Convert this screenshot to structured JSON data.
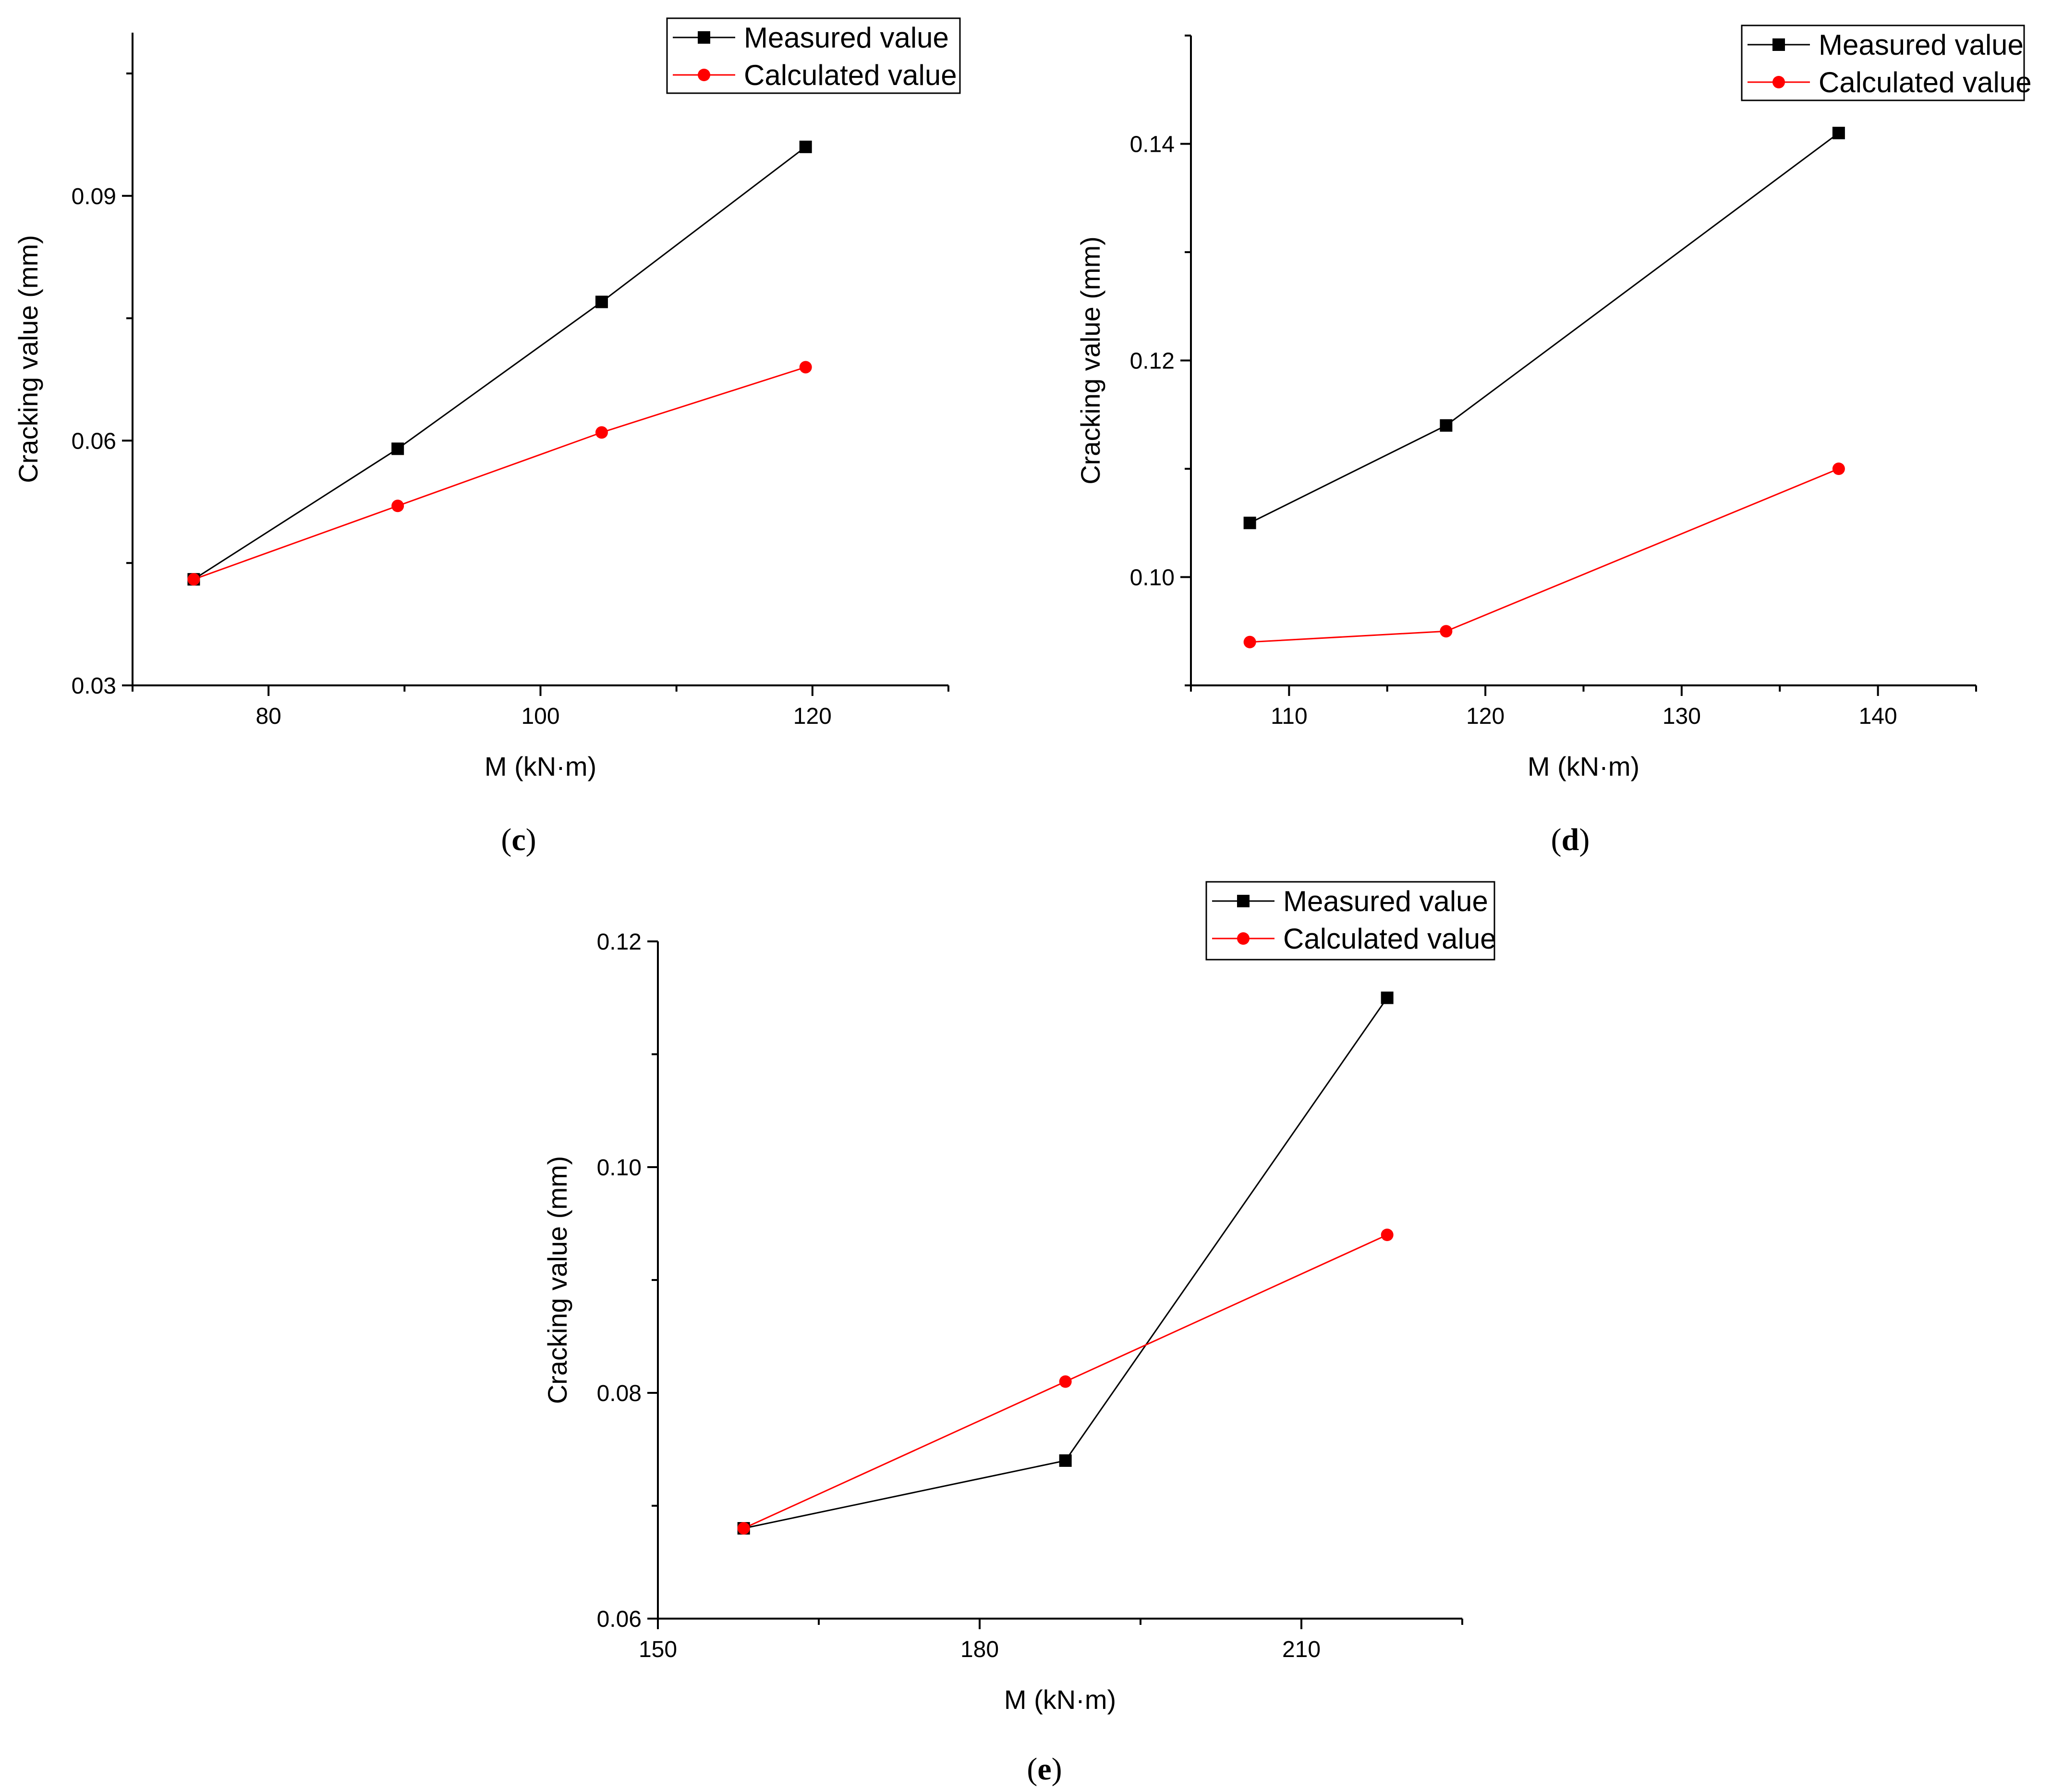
{
  "figure": {
    "captions": [
      "(c)",
      "(d)",
      "(e)"
    ]
  },
  "colors": {
    "measured": "#000000",
    "calculated": "#ff0000",
    "axis": "#000000",
    "background": "#ffffff"
  },
  "chart_data": [
    {
      "id": "c",
      "caption": "(c)",
      "type": "line",
      "xlabel": "M (kN·m)",
      "ylabel": "Cracking value (mm)",
      "xlim": [
        70,
        130
      ],
      "ylim": [
        0.03,
        0.11
      ],
      "xticks": [
        80,
        100,
        120
      ],
      "xtick_labels": [
        "80",
        "100",
        "120"
      ],
      "yticks": [
        0.03,
        0.06,
        0.09
      ],
      "ytick_labels": [
        "0.03",
        "0.06",
        "0.09"
      ],
      "grid": false,
      "legend_position": "top-right",
      "series": [
        {
          "name": "Measured value",
          "marker": "square",
          "color": "#000000",
          "x": [
            74.5,
            89.5,
            104.5,
            119.5
          ],
          "y": [
            0.043,
            0.059,
            0.077,
            0.096
          ]
        },
        {
          "name": "Calculated value",
          "marker": "circle",
          "color": "#ff0000",
          "x": [
            74.5,
            89.5,
            104.5,
            119.5
          ],
          "y": [
            0.043,
            0.052,
            0.061,
            0.069
          ]
        }
      ]
    },
    {
      "id": "d",
      "caption": "(d)",
      "type": "line",
      "xlabel": "M (kN·m)",
      "ylabel": "Cracking value (mm)",
      "xlim": [
        105,
        145
      ],
      "ylim": [
        0.09,
        0.15
      ],
      "xticks": [
        110,
        120,
        130,
        140
      ],
      "xtick_labels": [
        "110",
        "120",
        "130",
        "140"
      ],
      "yticks": [
        0.1,
        0.12,
        0.14
      ],
      "ytick_labels": [
        "0.10",
        "0.12",
        "0.14"
      ],
      "grid": false,
      "legend_position": "top-right",
      "series": [
        {
          "name": "Measured value",
          "marker": "square",
          "color": "#000000",
          "x": [
            108,
            118,
            138
          ],
          "y": [
            0.105,
            0.114,
            0.141
          ]
        },
        {
          "name": "Calculated value",
          "marker": "circle",
          "color": "#ff0000",
          "x": [
            108,
            118,
            138
          ],
          "y": [
            0.094,
            0.095,
            0.11
          ]
        }
      ]
    },
    {
      "id": "e",
      "caption": "(e)",
      "type": "line",
      "xlabel": "M (kN·m)",
      "ylabel": "Cracking value (mm)",
      "xlim": [
        150,
        225
      ],
      "ylim": [
        0.06,
        0.12
      ],
      "xticks": [
        150,
        180,
        210
      ],
      "xtick_labels": [
        "150",
        "180",
        "210"
      ],
      "yticks": [
        0.06,
        0.08,
        0.1,
        0.12
      ],
      "ytick_labels": [
        "0.06",
        "0.08",
        "0.10",
        "0.12"
      ],
      "grid": false,
      "legend_position": "top-right",
      "series": [
        {
          "name": "Measured value",
          "marker": "square",
          "color": "#000000",
          "x": [
            158,
            188,
            218
          ],
          "y": [
            0.068,
            0.074,
            0.115
          ]
        },
        {
          "name": "Calculated value",
          "marker": "circle",
          "color": "#ff0000",
          "x": [
            158,
            188,
            218
          ],
          "y": [
            0.068,
            0.081,
            0.094
          ]
        }
      ]
    }
  ]
}
